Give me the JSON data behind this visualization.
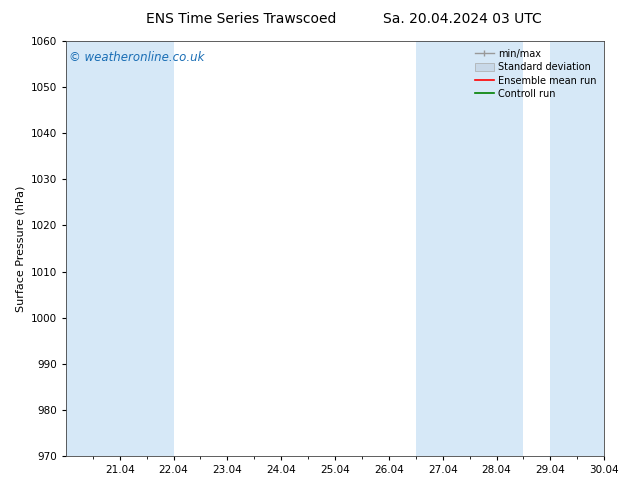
{
  "title_left": "ENS Time Series Trawscoed",
  "title_right": "Sa. 20.04.2024 03 UTC",
  "ylabel": "Surface Pressure (hPa)",
  "ylim": [
    970,
    1060
  ],
  "yticks": [
    970,
    980,
    990,
    1000,
    1010,
    1020,
    1030,
    1040,
    1050,
    1060
  ],
  "xlabels": [
    "21.04",
    "22.04",
    "23.04",
    "24.04",
    "25.04",
    "26.04",
    "27.04",
    "28.04",
    "29.04",
    "30.04"
  ],
  "band_color": "#d6e8f7",
  "bg_color": "#ffffff",
  "watermark": "© weatheronline.co.uk",
  "watermark_color": "#1a6eb5",
  "legend_labels": [
    "min/max",
    "Standard deviation",
    "Ensemble mean run",
    "Controll run"
  ],
  "legend_colors": [
    "#a0a0a0",
    "#c8d8e8",
    "#ff0000",
    "#008000"
  ],
  "title_fontsize": 10,
  "axis_fontsize": 8,
  "tick_fontsize": 7.5,
  "watermark_fontsize": 8.5,
  "legend_fontsize": 7
}
